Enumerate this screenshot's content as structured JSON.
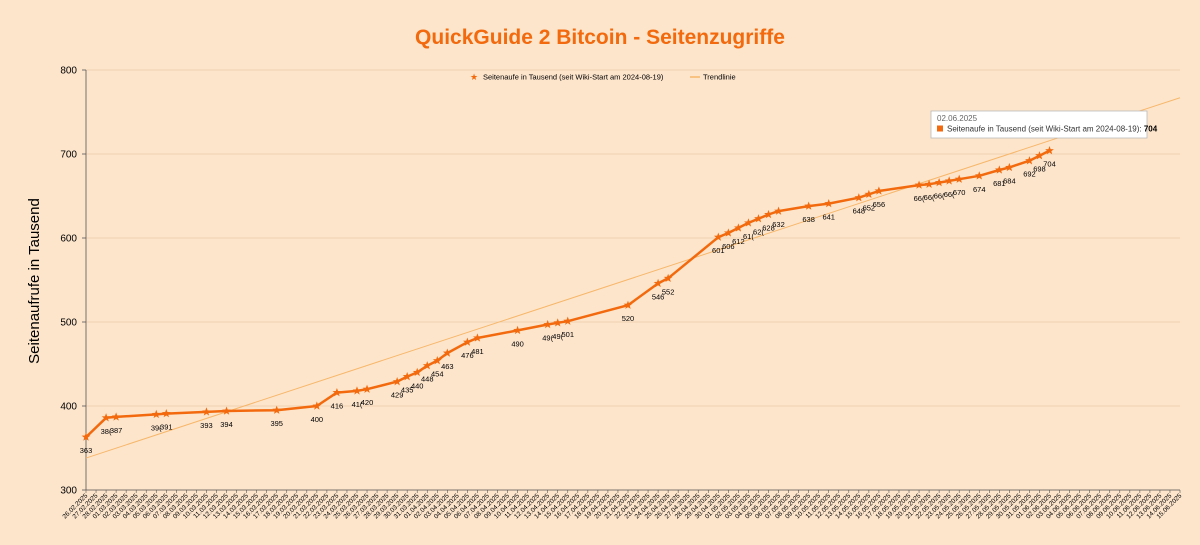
{
  "chart_data": {
    "type": "line",
    "title": "QuickGuide 2 Bitcoin - Seitenzugriffe",
    "ylabel": "Seitenaufrufe in Tausend",
    "ylim": [
      300,
      800
    ],
    "yticks": [
      300,
      400,
      500,
      600,
      700,
      800
    ],
    "grid": true,
    "legend_position": "top",
    "x": [
      "26.02.2025",
      "27.02.2025",
      "28.02.2025",
      "01.03.2025",
      "02.03.2025",
      "03.03.2025",
      "04.03.2025",
      "05.03.2025",
      "06.03.2025",
      "07.03.2025",
      "08.03.2025",
      "09.03.2025",
      "10.03.2025",
      "11.03.2025",
      "12.03.2025",
      "13.03.2025",
      "14.03.2025",
      "15.03.2025",
      "16.03.2025",
      "17.03.2025",
      "18.03.2025",
      "19.03.2025",
      "20.03.2025",
      "21.03.2025",
      "22.03.2025",
      "23.03.2025",
      "24.03.2025",
      "25.03.2025",
      "26.03.2025",
      "27.03.2025",
      "28.03.2025",
      "29.03.2025",
      "30.03.2025",
      "31.03.2025",
      "01.04.2025",
      "02.04.2025",
      "03.04.2025",
      "04.04.2025",
      "05.04.2025",
      "06.04.2025",
      "07.04.2025",
      "08.04.2025",
      "09.04.2025",
      "10.04.2025",
      "11.04.2025",
      "12.04.2025",
      "13.04.2025",
      "14.04.2025",
      "15.04.2025",
      "16.04.2025",
      "17.04.2025",
      "18.04.2025",
      "19.04.2025",
      "20.04.2025",
      "21.04.2025",
      "22.04.2025",
      "23.04.2025",
      "24.04.2025",
      "25.04.2025",
      "26.04.2025",
      "27.04.2025",
      "28.04.2025",
      "29.04.2025",
      "30.04.2025",
      "01.05.2025",
      "02.05.2025",
      "03.05.2025",
      "04.05.2025",
      "05.05.2025",
      "06.05.2025",
      "07.05.2025",
      "08.05.2025",
      "09.05.2025",
      "10.05.2025",
      "11.05.2025",
      "12.05.2025",
      "13.05.2025",
      "14.05.2025",
      "15.05.2025",
      "16.05.2025",
      "17.05.2025",
      "18.05.2025",
      "19.05.2025",
      "20.05.2025",
      "21.05.2025",
      "22.05.2025",
      "23.05.2025",
      "24.05.2025",
      "25.05.2025",
      "26.05.2025",
      "27.05.2025",
      "28.05.2025",
      "29.05.2025",
      "30.05.2025",
      "31.05.2025",
      "01.06.2025",
      "02.06.2025",
      "03.06.2025",
      "04.06.2025",
      "05.06.2025",
      "06.06.2025",
      "07.06.2025",
      "08.06.2025",
      "09.06.2025",
      "10.06.2025",
      "11.06.2025",
      "12.06.2025",
      "13.06.2025",
      "14.06.2025",
      "15.06.2025"
    ],
    "series": [
      {
        "name": "Seitenaufe in Tausend (seit Wiki-Start am 2024-08-19)",
        "color": "#f26a0d",
        "marker": "star",
        "points": [
          [
            "26.02.2025",
            363
          ],
          [
            "28.02.2025",
            386
          ],
          [
            "01.03.2025",
            387
          ],
          [
            "05.03.2025",
            390
          ],
          [
            "06.03.2025",
            391
          ],
          [
            "10.03.2025",
            393
          ],
          [
            "12.03.2025",
            394
          ],
          [
            "17.03.2025",
            395
          ],
          [
            "21.03.2025",
            400
          ],
          [
            "23.03.2025",
            416
          ],
          [
            "25.03.2025",
            418
          ],
          [
            "26.03.2025",
            420
          ],
          [
            "29.03.2025",
            429
          ],
          [
            "30.03.2025",
            435
          ],
          [
            "31.03.2025",
            440
          ],
          [
            "01.04.2025",
            448
          ],
          [
            "02.04.2025",
            454
          ],
          [
            "03.04.2025",
            463
          ],
          [
            "05.04.2025",
            476
          ],
          [
            "06.04.2025",
            481
          ],
          [
            "10.04.2025",
            490
          ],
          [
            "13.04.2025",
            497
          ],
          [
            "14.04.2025",
            499
          ],
          [
            "15.04.2025",
            501
          ],
          [
            "21.04.2025",
            520
          ],
          [
            "24.04.2025",
            546
          ],
          [
            "25.04.2025",
            552
          ],
          [
            "30.04.2025",
            601
          ],
          [
            "01.05.2025",
            606
          ],
          [
            "02.05.2025",
            612
          ],
          [
            "03.05.2025",
            618
          ],
          [
            "04.05.2025",
            623
          ],
          [
            "05.05.2025",
            628
          ],
          [
            "06.05.2025",
            632
          ],
          [
            "09.05.2025",
            638
          ],
          [
            "11.05.2025",
            641
          ],
          [
            "14.05.2025",
            648
          ],
          [
            "15.05.2025",
            652
          ],
          [
            "16.05.2025",
            656
          ],
          [
            "20.05.2025",
            663
          ],
          [
            "21.05.2025",
            664
          ],
          [
            "22.05.2025",
            666
          ],
          [
            "23.05.2025",
            668
          ],
          [
            "24.05.2025",
            670
          ],
          [
            "26.05.2025",
            674
          ],
          [
            "28.05.2025",
            681
          ],
          [
            "29.05.2025",
            684
          ],
          [
            "31.05.2025",
            692
          ],
          [
            "01.06.2025",
            698
          ],
          [
            "02.06.2025",
            704
          ]
        ],
        "data_labels": [
          [
            "26.02.2025",
            "363"
          ],
          [
            "28.02.2025",
            "38("
          ],
          [
            "01.03.2025",
            "387"
          ],
          [
            "05.03.2025",
            "39("
          ],
          [
            "06.03.2025",
            "391"
          ],
          [
            "10.03.2025",
            "393"
          ],
          [
            "12.03.2025",
            "394"
          ],
          [
            "17.03.2025",
            "395"
          ],
          [
            "21.03.2025",
            "400"
          ],
          [
            "23.03.2025",
            "416"
          ],
          [
            "25.03.2025",
            "41("
          ],
          [
            "26.03.2025",
            "420"
          ],
          [
            "29.03.2025",
            "429"
          ],
          [
            "30.03.2025",
            "435"
          ],
          [
            "31.03.2025",
            "440"
          ],
          [
            "01.04.2025",
            "448"
          ],
          [
            "02.04.2025",
            "454"
          ],
          [
            "03.04.2025",
            "463"
          ],
          [
            "05.04.2025",
            "476"
          ],
          [
            "06.04.2025",
            "481"
          ],
          [
            "10.04.2025",
            "490"
          ],
          [
            "13.04.2025",
            "49("
          ],
          [
            "14.04.2025",
            "49("
          ],
          [
            "15.04.2025",
            "501"
          ],
          [
            "21.04.2025",
            "520"
          ],
          [
            "24.04.2025",
            "546"
          ],
          [
            "25.04.2025",
            "552"
          ],
          [
            "30.04.2025",
            "601"
          ],
          [
            "01.05.2025",
            "606"
          ],
          [
            "02.05.2025",
            "612"
          ],
          [
            "03.05.2025",
            "61("
          ],
          [
            "04.05.2025",
            "62("
          ],
          [
            "05.05.2025",
            "628"
          ],
          [
            "06.05.2025",
            "632"
          ],
          [
            "09.05.2025",
            "638"
          ],
          [
            "11.05.2025",
            "641"
          ],
          [
            "14.05.2025",
            "648"
          ],
          [
            "15.05.2025",
            "652"
          ],
          [
            "16.05.2025",
            "656"
          ],
          [
            "20.05.2025",
            "66("
          ],
          [
            "21.05.2025",
            "66("
          ],
          [
            "22.05.2025",
            "66("
          ],
          [
            "23.05.2025",
            "66("
          ],
          [
            "24.05.2025",
            "670"
          ],
          [
            "26.05.2025",
            "674"
          ],
          [
            "28.05.2025",
            "681"
          ],
          [
            "29.05.2025",
            "684"
          ],
          [
            "31.05.2025",
            "692"
          ],
          [
            "01.06.2025",
            "698"
          ],
          [
            "02.06.2025",
            "704"
          ]
        ]
      },
      {
        "name": "Trendlinie",
        "color": "#f7b76a",
        "type": "trendline",
        "points": [
          [
            "26.02.2025",
            338
          ],
          [
            "15.06.2025",
            767
          ]
        ]
      }
    ],
    "tooltip": {
      "date": "02.06.2025",
      "series_label": "Seitenaufe in Tausend (seit Wiki-Start am 2024-08-19)",
      "value": "704"
    }
  }
}
